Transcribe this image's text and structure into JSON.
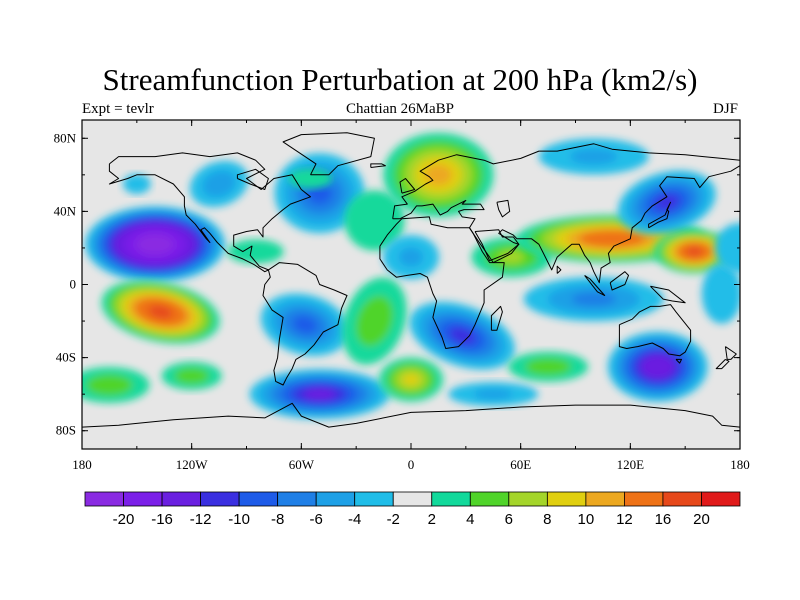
{
  "title": "Streamfunction Perturbation at 200 hPa (km2/s)",
  "subtitle_left": "Expt = tevlr",
  "subtitle_center": "Chattian  26MaBP",
  "subtitle_right": "DJF",
  "axes": {
    "lat_labels": [
      "80N",
      "40N",
      "0",
      "40S",
      "80S"
    ],
    "lon_labels": [
      "180",
      "120W",
      "60W",
      "0",
      "60E",
      "120E",
      "180"
    ]
  },
  "colorbar": {
    "colors": [
      "#8a2be2",
      "#7b1fe8",
      "#6a1fe0",
      "#3a2fe0",
      "#1e5be8",
      "#1f7fe6",
      "#1ea0e6",
      "#20bde8",
      "#e6e6e6",
      "#12d99b",
      "#50d42a",
      "#a4d52a",
      "#e0cf10",
      "#eca820",
      "#ee7216",
      "#e6481a",
      "#e01a1a"
    ],
    "labels": [
      "-20",
      "-16",
      "-12",
      "-10",
      "-8",
      "-6",
      "-4",
      "-2",
      "2",
      "4",
      "6",
      "8",
      "10",
      "12",
      "16",
      "20"
    ]
  },
  "chart_data": {
    "type": "heatmap",
    "variable": "Streamfunction Perturbation at 200 hPa",
    "units": "km2/s",
    "xlim": [
      -180,
      180
    ],
    "ylim": [
      -90,
      90
    ],
    "xticks": [
      -180,
      -120,
      -60,
      0,
      60,
      120,
      180
    ],
    "yticks": [
      80,
      40,
      0,
      -40,
      -80
    ],
    "contour_levels": [
      -20,
      -16,
      -12,
      -10,
      -8,
      -6,
      -4,
      -2,
      2,
      4,
      6,
      8,
      10,
      12,
      16,
      20
    ],
    "features": [
      {
        "name": "strong negative centre, central Pacific",
        "lon": -140,
        "lat": 22,
        "value": -22
      },
      {
        "name": "strong positive centre, eastern South Pacific",
        "lon": -137,
        "lat": -15,
        "value": 16
      },
      {
        "name": "positive band, south Asia",
        "lon": 110,
        "lat": 25,
        "value": 14
      },
      {
        "name": "positive centre, western Pacific",
        "lon": 155,
        "lat": 18,
        "value": 16
      },
      {
        "name": "positive centre, Scandinavia",
        "lon": 10,
        "lat": 60,
        "value": 10
      },
      {
        "name": "negative centre, Australia",
        "lon": 135,
        "lat": -45,
        "value": -14
      },
      {
        "name": "negative centre, South Atlantic",
        "lon": -50,
        "lat": -60,
        "value": -12
      },
      {
        "name": "negative centre, south Africa",
        "lon": 28,
        "lat": -28,
        "value": -10
      },
      {
        "name": "negative centre, north-east Asia",
        "lon": 140,
        "lat": 45,
        "value": -10
      },
      {
        "name": "negative centre, North Atlantic",
        "lon": -50,
        "lat": 50,
        "value": -8
      },
      {
        "name": "positive centre, South Atlantic",
        "lon": 0,
        "lat": -52,
        "value": 8
      }
    ]
  }
}
